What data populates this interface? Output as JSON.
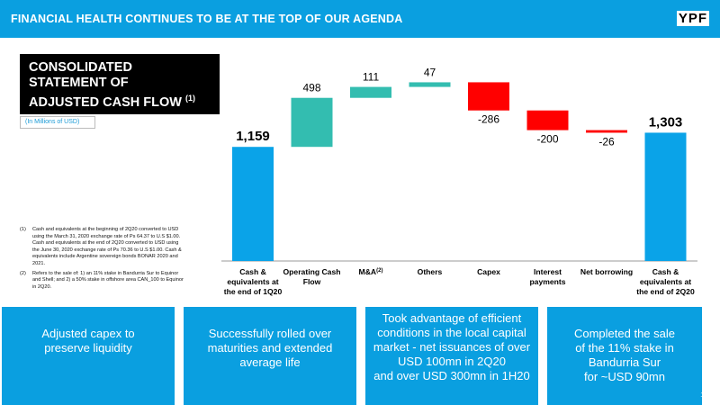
{
  "header": {
    "title": "FINANCIAL HEALTH  CONTINUES TO BE AT THE TOP OF OUR AGENDA",
    "logo": "YPF"
  },
  "title_box": {
    "line1": "CONSOLIDATED",
    "line2": "STATEMENT OF",
    "line3": "ADJUSTED CASH FLOW",
    "ref": "(1)"
  },
  "subtitle": "(In Millions of USD)",
  "notes": [
    {
      "num": "(1)",
      "text": "Cash and equivalents at the beginning of 2Q20 converted to USD using the March 31, 2020 exchange rate of Ps 64.37 to U.S $1.00. Cash and equivalents at the end of 2Q20 converted to USD using the June 30, 2020 exchange rate of Ps 70.36 to U.S $1.00. Cash & equivalents include Argentine sovereign bonds BONAR 2020 and 2021."
    },
    {
      "num": "(2)",
      "text": "Refers to the sale of: 1) an 11% stake in Bandurria Sur to Equinor and Shell; and 2) a 50% stake in offshore area CAN_100 to Equinor in 2Q20."
    }
  ],
  "chart_data": {
    "type": "bar",
    "subtype": "waterfall",
    "categories": [
      [
        "Cash &",
        "equivalents at",
        "the end of 1Q20"
      ],
      [
        "Operating Cash",
        "Flow"
      ],
      [
        "M&A(2)"
      ],
      [
        "Others"
      ],
      [
        "Capex"
      ],
      [
        "Interest",
        "payments"
      ],
      [
        "Net borrowing"
      ],
      [
        "Cash &",
        "equivalents at",
        "the end of 2Q20"
      ]
    ],
    "values": [
      1159,
      498,
      111,
      47,
      -286,
      -200,
      -26,
      1303
    ],
    "labels": [
      "1,159",
      "498",
      "111",
      "47",
      "-286",
      "-200",
      "-26",
      "1,303"
    ],
    "kinds": [
      "total",
      "delta",
      "delta",
      "delta",
      "delta",
      "delta",
      "delta",
      "total"
    ],
    "colors": {
      "total": "#0aa3e8",
      "increase": "#33bdb0",
      "decrease": "#ff0000"
    },
    "grid": false,
    "legend": "none"
  },
  "cards": [
    {
      "lines": [
        "Adjusted capex to",
        "preserve liquidity"
      ]
    },
    {
      "lines": [
        "Successfully rolled over",
        "maturities and extended",
        "average life"
      ]
    },
    {
      "lines": [
        "Took advantage of efficient",
        "conditions in the local capital",
        "market - net issuances of over",
        "USD 100mn in 2Q20",
        "and over USD 300mn in 1H20"
      ]
    },
    {
      "lines": [
        "Completed the sale",
        "of the 11% stake in",
        "Bandurria Sur",
        "for ~USD 90mn"
      ]
    }
  ],
  "page_number": "10"
}
